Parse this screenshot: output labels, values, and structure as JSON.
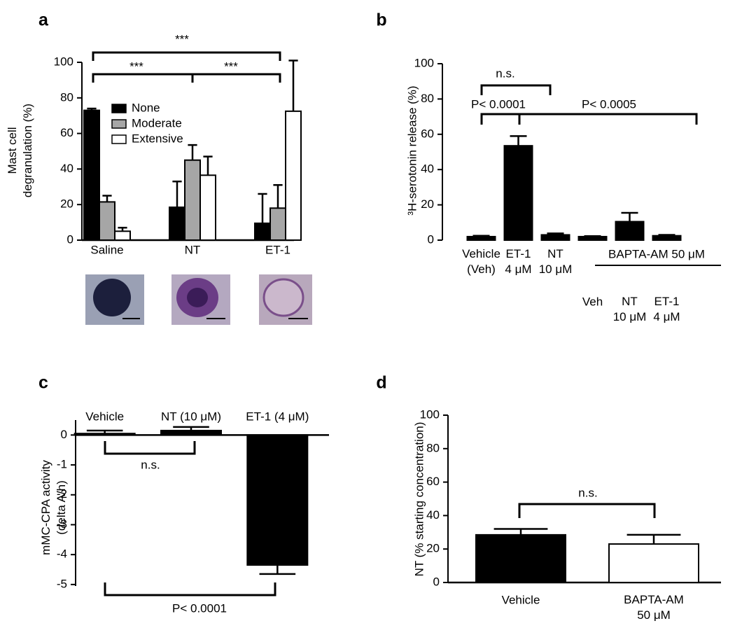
{
  "chart_data": [
    {
      "type": "bar",
      "panel_label": "a",
      "ylabel": "Mast cell\ndegranulation (%)",
      "categories": [
        "Saline",
        "NT",
        "ET-1"
      ],
      "series": [
        {
          "name": "None",
          "color": "#000000",
          "values": [
            73,
            18.5,
            9.5
          ],
          "errors": [
            1,
            14.5,
            16.5
          ]
        },
        {
          "name": "Moderate",
          "color": "#a6a6a6",
          "values": [
            21.5,
            45,
            18
          ],
          "errors": [
            3.5,
            8.5,
            13
          ]
        },
        {
          "name": "Extensive",
          "color": "#ffffff",
          "values": [
            5,
            36.5,
            72.5
          ],
          "errors": [
            2,
            10.5,
            28.5
          ]
        }
      ],
      "ylim": [
        0,
        100
      ],
      "yticks": [
        0,
        20,
        40,
        60,
        80,
        100
      ],
      "annotations": [
        "***",
        "***",
        "***"
      ]
    },
    {
      "type": "bar",
      "panel_label": "b",
      "ylabel": "³H-serotonin release (%)",
      "categories": [
        "Vehicle\n(Veh)",
        "ET-1\n4 μM",
        "NT\n10 μM",
        "Veh",
        "NT\n10 μM",
        "ET-1\n4 μM"
      ],
      "group_label": "BAPTA-AM 50 μM",
      "values": [
        2,
        53.5,
        3,
        2,
        10.5,
        2.5
      ],
      "errors": [
        0.5,
        5.5,
        0.8,
        0.3,
        5,
        0.5
      ],
      "color": "#000000",
      "ylim": [
        0,
        100
      ],
      "yticks": [
        0,
        20,
        40,
        60,
        80,
        100
      ],
      "annotations": [
        "n.s.",
        "P< 0.0001",
        "P< 0.0005"
      ]
    },
    {
      "type": "bar",
      "panel_label": "c",
      "ylabel": "mMC-CPA activity\n(delta A/h)",
      "categories": [
        "Vehicle",
        "NT (10 μM)",
        "ET-1 (4 μM)"
      ],
      "values": [
        0.05,
        0.15,
        -4.35
      ],
      "errors": [
        0.1,
        0.12,
        0.3
      ],
      "color": "#000000",
      "ylim": [
        -5.05,
        0.5
      ],
      "yticks": [
        -5,
        -4,
        -3,
        -2,
        -1,
        0
      ],
      "annotations": [
        "n.s.",
        "P< 0.0001"
      ]
    },
    {
      "type": "bar",
      "panel_label": "d",
      "ylabel": "NT (% starting concentration)",
      "categories": [
        "Vehicle",
        "BAPTA-AM\n50 μM"
      ],
      "values": [
        28.5,
        23
      ],
      "errors": [
        3.5,
        5.5
      ],
      "colors": [
        "#000000",
        "#ffffff"
      ],
      "ylim": [
        0,
        100
      ],
      "yticks": [
        0,
        20,
        40,
        60,
        80,
        100
      ],
      "annotations": [
        "n.s."
      ]
    }
  ]
}
